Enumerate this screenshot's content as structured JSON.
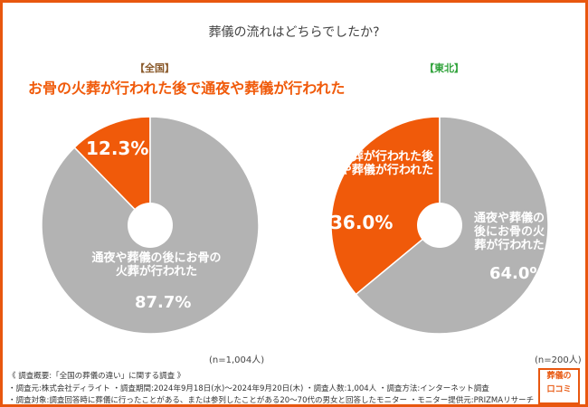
{
  "chart_data": [
    {
      "type": "pie",
      "title": "葬儀の流れはどちらでしたか?",
      "region": "【全国】",
      "n_label": "(n=1,004人)",
      "slices": [
        {
          "label": "お骨の火葬が行われた後で通夜や葬儀が行われた",
          "value": 12.3,
          "value_label": "12.3%",
          "color": "#f05a0a"
        },
        {
          "label": "通夜や葬儀の後にお骨の火葬が行われた",
          "value": 87.7,
          "value_label": "87.7%",
          "color": "#b3b3b3"
        }
      ]
    },
    {
      "type": "pie",
      "region": "【東北】",
      "n_label": "(n=200人)",
      "slices": [
        {
          "label": "お骨の火葬が行われた後で通夜や葬儀が行われた",
          "value": 36.0,
          "value_label": "36.0%",
          "color": "#f05a0a"
        },
        {
          "label": "通夜や葬儀の後にお骨の火葬が行われた",
          "value": 64.0,
          "value_label": "64.0%",
          "color": "#b3b3b3"
        }
      ]
    }
  ],
  "footer": {
    "line1": "《 調査概要:「全国の葬儀の違い」に関する調査 》",
    "line2": "・調査元:株式会社ディライト ・調査期間:2024年9月18日(水)～2024年9月20日(木) ・調査人数:1,004人 ・調査方法:インターネット調査",
    "line3": "・調査対象:調査回答時に葬儀に行ったことがある、または参列したことがある20～70代の男女と回答したモニター ・モニター提供元:PRIZMAリサーチ"
  },
  "logo": {
    "line1": "葬儀の",
    "line2": "口コミ"
  }
}
